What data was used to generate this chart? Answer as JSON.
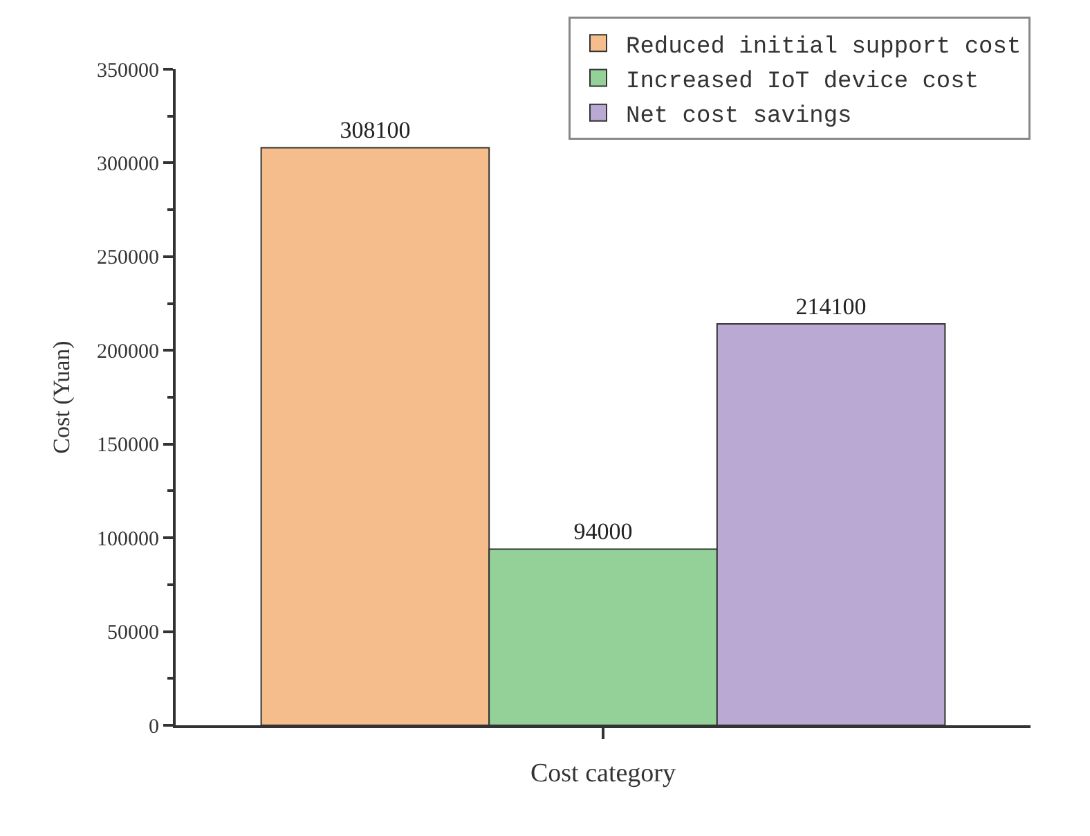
{
  "chart_data": {
    "type": "bar",
    "xlabel": "Cost category",
    "ylabel": "Cost (Yuan)",
    "categories": [
      null
    ],
    "series": [
      {
        "name": "Reduced initial support cost",
        "color": "#f5bd8c",
        "values": [
          308100
        ]
      },
      {
        "name": "Increased IoT device cost",
        "color": "#93d199",
        "values": [
          94000
        ]
      },
      {
        "name": "Net cost savings",
        "color": "#b9a9d3",
        "values": [
          214100
        ]
      }
    ],
    "ylim": [
      0,
      350000
    ],
    "yticks": [
      0,
      50000,
      100000,
      150000,
      200000,
      250000,
      300000,
      350000
    ],
    "data_labels": true,
    "legend": "top right"
  }
}
